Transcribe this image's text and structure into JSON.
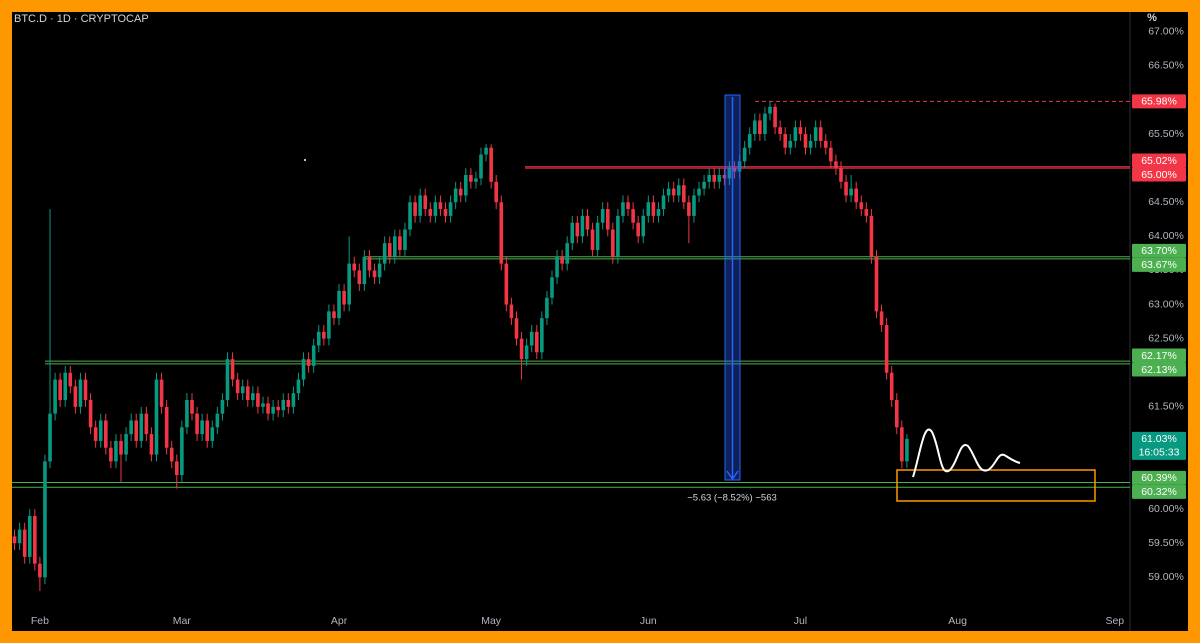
{
  "chart_data": {
    "type": "candlestick",
    "title": "BTC.D · 1D · CRYPTOCAP",
    "y_unit": "%",
    "xlim": [
      -5.5,
      215
    ],
    "ylim": [
      58.55,
      67.29
    ],
    "xticks": [
      {
        "value": 0,
        "label": "Feb"
      },
      {
        "value": 28,
        "label": "Mar"
      },
      {
        "value": 59,
        "label": "Apr"
      },
      {
        "value": 89,
        "label": "May"
      },
      {
        "value": 120,
        "label": "Jun"
      },
      {
        "value": 150,
        "label": "Jul"
      },
      {
        "value": 181,
        "label": "Aug"
      },
      {
        "value": 212,
        "label": "Sep"
      }
    ],
    "yticks": [
      {
        "value": 67,
        "label": "67.00%"
      },
      {
        "value": 66.5,
        "label": "66.50%"
      },
      {
        "value": 66,
        "label": "66.00%"
      },
      {
        "value": 65.5,
        "label": "65.50%"
      },
      {
        "value": 65,
        "label": "65.00%"
      },
      {
        "value": 64.5,
        "label": "64.50%"
      },
      {
        "value": 64,
        "label": "64.00%"
      },
      {
        "value": 63.5,
        "label": "63.50%"
      },
      {
        "value": 63,
        "label": "63.00%"
      },
      {
        "value": 62.5,
        "label": "62.50%"
      },
      {
        "value": 62,
        "label": "62.00%"
      },
      {
        "value": 61.5,
        "label": "61.50%"
      },
      {
        "value": 61,
        "label": "61.00%"
      },
      {
        "value": 60.5,
        "label": "60.50%"
      },
      {
        "value": 60,
        "label": "60.00%"
      },
      {
        "value": 59.5,
        "label": "59.50%"
      },
      {
        "value": 59,
        "label": "59.00%"
      }
    ],
    "up_color": "#089981",
    "down_color": "#f23645",
    "series": [
      {
        "name": "BTC.D",
        "x": [
          -5,
          -4,
          -3,
          -2,
          -1,
          0,
          1,
          2,
          3,
          4,
          5,
          6,
          7,
          8,
          9,
          10,
          11,
          12,
          13,
          14,
          15,
          16,
          17,
          18,
          19,
          20,
          21,
          22,
          23,
          24,
          25,
          26,
          27,
          28,
          29,
          30,
          31,
          32,
          33,
          34,
          35,
          36,
          37,
          38,
          39,
          40,
          41,
          42,
          43,
          44,
          45,
          46,
          47,
          48,
          49,
          50,
          51,
          52,
          53,
          54,
          55,
          56,
          57,
          58,
          59,
          60,
          61,
          62,
          63,
          64,
          65,
          66,
          67,
          68,
          69,
          70,
          71,
          72,
          73,
          74,
          75,
          76,
          77,
          78,
          79,
          80,
          81,
          82,
          83,
          84,
          85,
          86,
          87,
          88,
          89,
          90,
          91,
          92,
          93,
          94,
          95,
          96,
          97,
          98,
          99,
          100,
          101,
          102,
          103,
          104,
          105,
          106,
          107,
          108,
          109,
          110,
          111,
          112,
          113,
          114,
          115,
          116,
          117,
          118,
          119,
          120,
          121,
          122,
          123,
          124,
          125,
          126,
          127,
          128,
          129,
          130,
          131,
          132,
          133,
          134,
          135,
          136,
          137,
          138,
          139,
          140,
          141,
          142,
          143,
          144,
          145,
          146,
          147,
          148,
          149,
          150,
          151,
          152,
          153,
          154,
          155,
          156,
          157,
          158,
          159,
          160,
          161,
          162,
          163,
          164,
          165,
          166,
          167,
          168,
          169,
          170,
          171
        ],
        "open": [
          59.6,
          59.5,
          59.7,
          59.3,
          59.9,
          59.2,
          59.0,
          60.7,
          61.4,
          61.9,
          61.6,
          62.0,
          61.8,
          61.5,
          61.9,
          61.6,
          61.2,
          61.0,
          61.3,
          60.9,
          60.7,
          61.0,
          60.8,
          61.1,
          61.3,
          61.0,
          61.4,
          61.1,
          60.8,
          61.9,
          61.5,
          60.9,
          60.7,
          60.5,
          61.2,
          61.6,
          61.4,
          61.1,
          61.3,
          61.0,
          61.2,
          61.4,
          61.6,
          62.2,
          61.9,
          61.7,
          61.8,
          61.6,
          61.7,
          61.5,
          61.55,
          61.4,
          61.5,
          61.45,
          61.6,
          61.5,
          61.7,
          61.9,
          62.2,
          62.1,
          62.4,
          62.6,
          62.5,
          62.9,
          62.8,
          63.2,
          63.0,
          63.6,
          63.5,
          63.3,
          63.7,
          63.5,
          63.4,
          63.6,
          63.9,
          63.7,
          64.0,
          63.8,
          64.1,
          64.5,
          64.3,
          64.6,
          64.4,
          64.3,
          64.5,
          64.4,
          64.3,
          64.5,
          64.7,
          64.6,
          64.9,
          64.8,
          64.85,
          65.2,
          65.3,
          64.8,
          64.5,
          63.6,
          63.0,
          62.8,
          62.5,
          62.2,
          62.4,
          62.6,
          62.3,
          62.8,
          63.1,
          63.4,
          63.7,
          63.6,
          63.9,
          64.2,
          64.0,
          64.3,
          64.1,
          63.8,
          64.2,
          64.4,
          64.1,
          63.7,
          64.3,
          64.5,
          64.4,
          64.2,
          64.0,
          64.3,
          64.5,
          64.3,
          64.4,
          64.6,
          64.7,
          64.6,
          64.75,
          64.5,
          64.3,
          64.6,
          64.7,
          64.8,
          64.9,
          64.8,
          64.9,
          64.85,
          65.0,
          64.95,
          65.1,
          65.3,
          65.5,
          65.7,
          65.5,
          65.8,
          65.9,
          65.6,
          65.5,
          65.3,
          65.4,
          65.6,
          65.5,
          65.3,
          65.4,
          65.6,
          65.4,
          65.3,
          65.1,
          65.0,
          64.8,
          64.6,
          64.7,
          64.5,
          64.4,
          64.3,
          63.7,
          62.9,
          62.7,
          62.0,
          61.6,
          61.2,
          60.7
        ],
        "high": [
          59.7,
          59.8,
          59.8,
          60.0,
          60.0,
          59.3,
          60.8,
          64.4,
          62.0,
          62.0,
          62.1,
          62.1,
          61.9,
          62.0,
          62.0,
          61.7,
          61.3,
          61.4,
          61.4,
          61.0,
          61.1,
          61.1,
          61.2,
          61.4,
          61.4,
          61.5,
          61.5,
          61.2,
          62.0,
          62.0,
          61.6,
          61.0,
          60.8,
          61.3,
          61.7,
          61.7,
          61.5,
          61.4,
          61.4,
          61.3,
          61.5,
          61.7,
          62.3,
          62.3,
          62.0,
          61.9,
          61.9,
          61.8,
          61.8,
          61.65,
          61.65,
          61.6,
          61.6,
          61.7,
          61.7,
          61.8,
          62.0,
          62.3,
          62.3,
          62.5,
          62.7,
          62.7,
          63.0,
          63.0,
          63.3,
          63.3,
          64.0,
          63.7,
          63.6,
          63.8,
          63.8,
          63.6,
          63.7,
          64.0,
          64.0,
          64.1,
          64.1,
          64.2,
          64.6,
          64.6,
          64.7,
          64.7,
          64.5,
          64.6,
          64.6,
          64.5,
          64.6,
          64.8,
          64.8,
          65.0,
          65.0,
          64.95,
          65.3,
          65.35,
          65.35,
          64.9,
          64.6,
          63.7,
          63.1,
          62.9,
          62.6,
          62.5,
          62.7,
          62.7,
          62.9,
          63.2,
          63.5,
          63.8,
          63.8,
          64.0,
          64.3,
          64.3,
          64.4,
          64.4,
          64.2,
          64.3,
          64.5,
          64.5,
          64.2,
          64.4,
          64.6,
          64.6,
          64.5,
          64.3,
          64.4,
          64.6,
          64.6,
          64.5,
          64.7,
          64.8,
          64.8,
          64.85,
          64.85,
          64.6,
          64.7,
          64.8,
          64.9,
          65.0,
          65.0,
          65.0,
          65.0,
          65.1,
          65.1,
          65.2,
          65.4,
          65.6,
          65.8,
          65.8,
          65.9,
          65.98,
          65.95,
          65.7,
          65.6,
          65.5,
          65.7,
          65.7,
          65.6,
          65.5,
          65.7,
          65.7,
          65.5,
          65.4,
          65.2,
          65.1,
          64.9,
          64.9,
          64.8,
          64.6,
          64.5,
          64.4,
          63.8,
          63.0,
          62.8,
          62.1,
          61.7,
          61.3,
          61.1
        ],
        "low": [
          59.4,
          59.4,
          59.2,
          59.2,
          59.1,
          58.8,
          58.9,
          60.6,
          61.3,
          61.5,
          61.5,
          61.7,
          61.4,
          61.4,
          61.5,
          61.1,
          60.9,
          60.9,
          60.8,
          60.6,
          60.6,
          60.4,
          60.7,
          61.0,
          60.9,
          60.9,
          61.0,
          60.7,
          60.7,
          61.4,
          60.8,
          60.6,
          60.3,
          60.4,
          61.1,
          61.3,
          61.0,
          61.0,
          60.9,
          60.9,
          61.1,
          61.3,
          61.5,
          61.8,
          61.6,
          61.6,
          61.5,
          61.5,
          61.4,
          61.4,
          61.3,
          61.3,
          61.35,
          61.35,
          61.4,
          61.4,
          61.6,
          61.8,
          62.0,
          62.0,
          62.3,
          62.4,
          62.4,
          62.7,
          62.7,
          62.9,
          62.9,
          63.4,
          63.2,
          63.2,
          63.4,
          63.3,
          63.3,
          63.5,
          63.6,
          63.6,
          63.7,
          63.7,
          64.0,
          64.2,
          64.2,
          64.3,
          64.2,
          64.2,
          64.3,
          64.2,
          64.2,
          64.4,
          64.5,
          64.5,
          64.7,
          64.7,
          64.75,
          65.1,
          64.7,
          64.4,
          63.5,
          62.9,
          62.7,
          62.4,
          61.9,
          62.1,
          62.3,
          62.2,
          62.2,
          62.7,
          63.0,
          63.3,
          63.5,
          63.5,
          63.8,
          63.9,
          63.9,
          64.0,
          63.7,
          63.7,
          64.1,
          64.0,
          63.6,
          63.6,
          64.2,
          64.3,
          64.1,
          63.9,
          63.9,
          64.2,
          64.2,
          64.2,
          64.3,
          64.5,
          64.5,
          64.5,
          64.4,
          63.9,
          64.2,
          64.5,
          64.6,
          64.7,
          64.7,
          64.7,
          64.75,
          64.75,
          64.85,
          64.85,
          65.0,
          65.2,
          65.4,
          65.4,
          65.4,
          65.7,
          65.5,
          65.4,
          65.2,
          65.2,
          65.3,
          65.4,
          65.2,
          65.2,
          65.3,
          65.3,
          65.2,
          65.0,
          64.9,
          64.7,
          64.5,
          64.5,
          64.4,
          64.3,
          64.2,
          63.6,
          62.8,
          62.6,
          61.9,
          61.5,
          61.1,
          60.6,
          60.6
        ],
        "close": [
          59.5,
          59.7,
          59.3,
          59.9,
          59.2,
          59.0,
          60.7,
          61.4,
          61.9,
          61.6,
          62.0,
          61.8,
          61.5,
          61.9,
          61.6,
          61.2,
          61.0,
          61.3,
          60.9,
          60.7,
          61.0,
          60.8,
          61.1,
          61.3,
          61.0,
          61.4,
          61.1,
          60.8,
          61.9,
          61.5,
          60.9,
          60.7,
          60.5,
          61.2,
          61.6,
          61.4,
          61.1,
          61.3,
          61.0,
          61.2,
          61.4,
          61.6,
          62.2,
          61.9,
          61.7,
          61.8,
          61.6,
          61.7,
          61.5,
          61.55,
          61.4,
          61.5,
          61.45,
          61.6,
          61.5,
          61.7,
          61.9,
          62.2,
          62.1,
          62.4,
          62.6,
          62.5,
          62.9,
          62.8,
          63.2,
          63.0,
          63.6,
          63.5,
          63.3,
          63.7,
          63.5,
          63.4,
          63.6,
          63.9,
          63.7,
          64.0,
          63.8,
          64.1,
          64.5,
          64.3,
          64.6,
          64.4,
          64.3,
          64.5,
          64.4,
          64.3,
          64.5,
          64.7,
          64.6,
          64.9,
          64.8,
          64.85,
          65.2,
          65.3,
          64.8,
          64.5,
          63.6,
          63.0,
          62.8,
          62.5,
          62.2,
          62.4,
          62.6,
          62.3,
          62.8,
          63.1,
          63.4,
          63.7,
          63.6,
          63.9,
          64.2,
          64.0,
          64.3,
          64.1,
          63.8,
          64.2,
          64.4,
          64.1,
          63.7,
          64.3,
          64.5,
          64.4,
          64.2,
          64.0,
          64.3,
          64.5,
          64.3,
          64.4,
          64.6,
          64.7,
          64.6,
          64.75,
          64.5,
          64.3,
          64.6,
          64.7,
          64.8,
          64.9,
          64.8,
          64.9,
          64.85,
          65.0,
          64.95,
          65.1,
          65.3,
          65.5,
          65.7,
          65.5,
          65.8,
          65.9,
          65.6,
          65.5,
          65.3,
          65.4,
          65.6,
          65.5,
          65.3,
          65.4,
          65.6,
          65.4,
          65.3,
          65.1,
          65.0,
          64.8,
          64.6,
          64.7,
          64.5,
          64.4,
          64.3,
          63.7,
          62.9,
          62.7,
          62.0,
          61.6,
          61.2,
          60.7,
          61.03
        ]
      }
    ],
    "levels": [
      {
        "value": 65.98,
        "label": "65.98%",
        "color": "#f23645",
        "dashed": true
      },
      {
        "value": 65.02,
        "label": "65.02%",
        "color": "#f23645"
      },
      {
        "value": 65.0,
        "label": "65.00%",
        "color": "#f23645"
      },
      {
        "value": 63.7,
        "label": "63.70%",
        "color": "#4caf50"
      },
      {
        "value": 63.67,
        "label": "63.67%",
        "color": "#4caf50"
      },
      {
        "value": 62.17,
        "label": "62.17%",
        "color": "#4caf50"
      },
      {
        "value": 62.13,
        "label": "62.13%",
        "color": "#4caf50"
      },
      {
        "value": 60.39,
        "label": "60.39%",
        "color": "#4caf50"
      },
      {
        "value": 60.32,
        "label": "60.32%",
        "color": "#4caf50"
      }
    ],
    "last_price": {
      "value": 61.03,
      "label": "61.03%",
      "countdown": "16:05:33",
      "color": "#089981"
    },
    "annotations": [
      {
        "text": "−5.63 (−8.52%) −563"
      }
    ]
  }
}
